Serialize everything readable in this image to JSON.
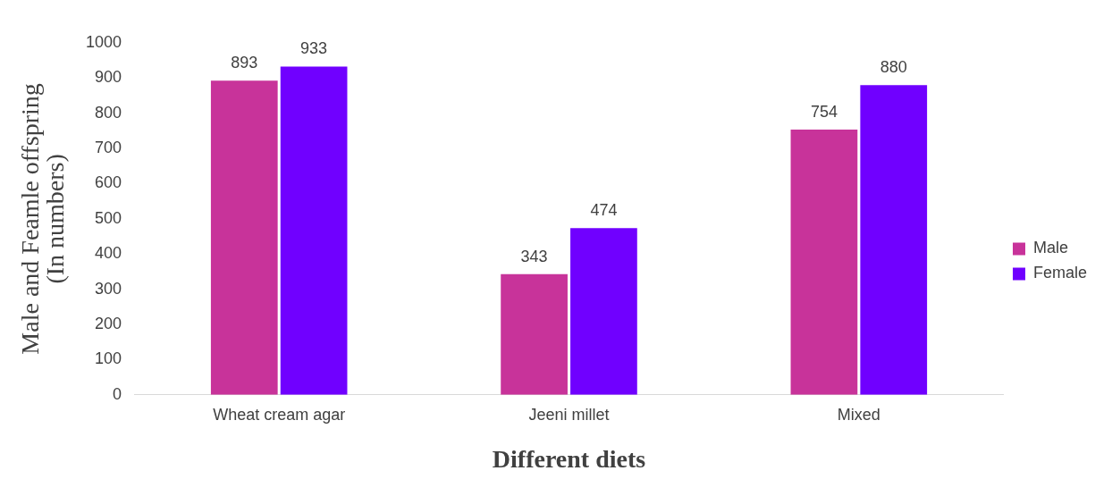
{
  "chart_data": {
    "type": "bar",
    "xlabel": "Different diets",
    "ylabel": "Male and Feamle offspring\n(In numbers)",
    "categories": [
      "Wheat cream agar",
      "Jeeni millet",
      "Mixed"
    ],
    "series": [
      {
        "name": "Male",
        "color": "#c8339a",
        "values": [
          893,
          343,
          754
        ]
      },
      {
        "name": "Female",
        "color": "#7000ff",
        "values": [
          933,
          474,
          880
        ]
      }
    ],
    "ylim": [
      0,
      1000
    ],
    "yticks": [
      0,
      100,
      200,
      300,
      400,
      500,
      600,
      700,
      800,
      900,
      1000
    ],
    "grid": false,
    "legend": "right",
    "data_labels": true
  }
}
